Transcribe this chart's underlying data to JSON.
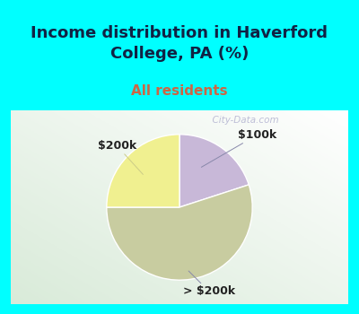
{
  "title": "Income distribution in Haverford\nCollege, PA (%)",
  "subtitle": "All residents",
  "slices": [
    {
      "label": "$100k",
      "value": 20,
      "color": "#c8b8d8"
    },
    {
      "label": "> $200k",
      "value": 55,
      "color": "#c8cca0"
    },
    {
      "label": "$200k",
      "value": 25,
      "color": "#f0f090"
    }
  ],
  "title_fontsize": 13,
  "subtitle_fontsize": 11,
  "subtitle_color": "#cc6644",
  "title_color": "#112244",
  "header_bg": "#00ffff",
  "watermark": "  City-Data.com",
  "label_color": "#222222",
  "label_fontsize": 9,
  "pie_edge_color": "white",
  "pie_linewidth": 1.0
}
